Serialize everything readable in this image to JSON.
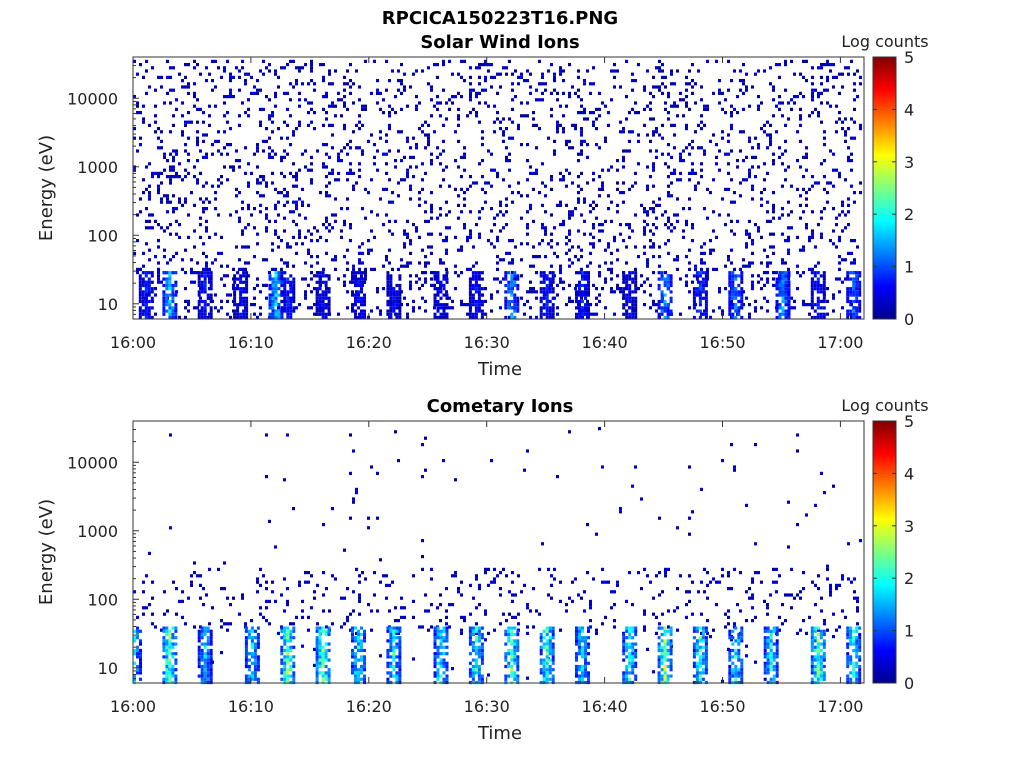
{
  "figure_title": "RPCICA150223T16.PNG",
  "chart_data": [
    {
      "type": "heatmap",
      "title": "Solar Wind Ions",
      "xlabel": "Time",
      "ylabel": "Energy (eV)",
      "x_ticks": [
        "16:00",
        "16:10",
        "16:20",
        "16:30",
        "16:40",
        "16:50",
        "17:00"
      ],
      "x_range": [
        "16:00",
        "17:02"
      ],
      "y_scale": "log",
      "y_ticks": [
        10,
        100,
        1000,
        10000
      ],
      "y_range": [
        6,
        40000
      ],
      "colorbar": {
        "label": "Log counts",
        "range": [
          0,
          5
        ],
        "ticks": [
          0,
          1,
          2,
          3,
          4,
          5
        ],
        "colormap": "jet"
      },
      "background_density": 0.13,
      "low_energy_band": [
        6,
        30
      ],
      "bursts": [
        {
          "t": "16:01",
          "v": 0.8
        },
        {
          "t": "16:03",
          "v": 1.6
        },
        {
          "t": "16:06",
          "v": 0.7
        },
        {
          "t": "16:09",
          "v": 0.6
        },
        {
          "t": "16:12",
          "v": 1.7
        },
        {
          "t": "16:13",
          "v": 0.8
        },
        {
          "t": "16:16",
          "v": 0.6
        },
        {
          "t": "16:19",
          "v": 0.7
        },
        {
          "t": "16:22",
          "v": 0.6
        },
        {
          "t": "16:26",
          "v": 0.6
        },
        {
          "t": "16:29",
          "v": 0.7
        },
        {
          "t": "16:32",
          "v": 1.5
        },
        {
          "t": "16:35",
          "v": 0.7
        },
        {
          "t": "16:38",
          "v": 0.8
        },
        {
          "t": "16:42",
          "v": 0.6
        },
        {
          "t": "16:45",
          "v": 1.4
        },
        {
          "t": "16:48",
          "v": 0.9
        },
        {
          "t": "16:51",
          "v": 1.3
        },
        {
          "t": "16:55",
          "v": 1.4
        },
        {
          "t": "16:58",
          "v": 0.7
        },
        {
          "t": "17:01",
          "v": 1.2
        }
      ]
    },
    {
      "type": "heatmap",
      "title": "Cometary Ions",
      "xlabel": "Time",
      "ylabel": "Energy (eV)",
      "x_ticks": [
        "16:00",
        "16:10",
        "16:20",
        "16:30",
        "16:40",
        "16:50",
        "17:00"
      ],
      "x_range": [
        "16:00",
        "17:02"
      ],
      "y_scale": "log",
      "y_ticks": [
        10,
        100,
        1000,
        10000
      ],
      "y_range": [
        6,
        40000
      ],
      "colorbar": {
        "label": "Log counts",
        "range": [
          0,
          5
        ],
        "ticks": [
          0,
          1,
          2,
          3,
          4,
          5
        ],
        "colormap": "jet"
      },
      "background_density": 0.008,
      "mid_energy_band": [
        30,
        300
      ],
      "low_energy_band": [
        6,
        40
      ],
      "bursts": [
        {
          "t": "16:00",
          "v": 1.6
        },
        {
          "t": "16:03",
          "v": 2.4
        },
        {
          "t": "16:06",
          "v": 1.6
        },
        {
          "t": "16:10",
          "v": 1.7
        },
        {
          "t": "16:13",
          "v": 2.5
        },
        {
          "t": "16:16",
          "v": 2.6
        },
        {
          "t": "16:19",
          "v": 2.0
        },
        {
          "t": "16:22",
          "v": 1.9
        },
        {
          "t": "16:26",
          "v": 2.0
        },
        {
          "t": "16:29",
          "v": 2.1
        },
        {
          "t": "16:32",
          "v": 2.3
        },
        {
          "t": "16:35",
          "v": 2.2
        },
        {
          "t": "16:38",
          "v": 1.8
        },
        {
          "t": "16:42",
          "v": 2.0
        },
        {
          "t": "16:45",
          "v": 2.6
        },
        {
          "t": "16:48",
          "v": 2.1
        },
        {
          "t": "16:51",
          "v": 2.0
        },
        {
          "t": "16:54",
          "v": 1.9
        },
        {
          "t": "16:58",
          "v": 2.4
        },
        {
          "t": "17:01",
          "v": 2.0
        }
      ]
    }
  ]
}
